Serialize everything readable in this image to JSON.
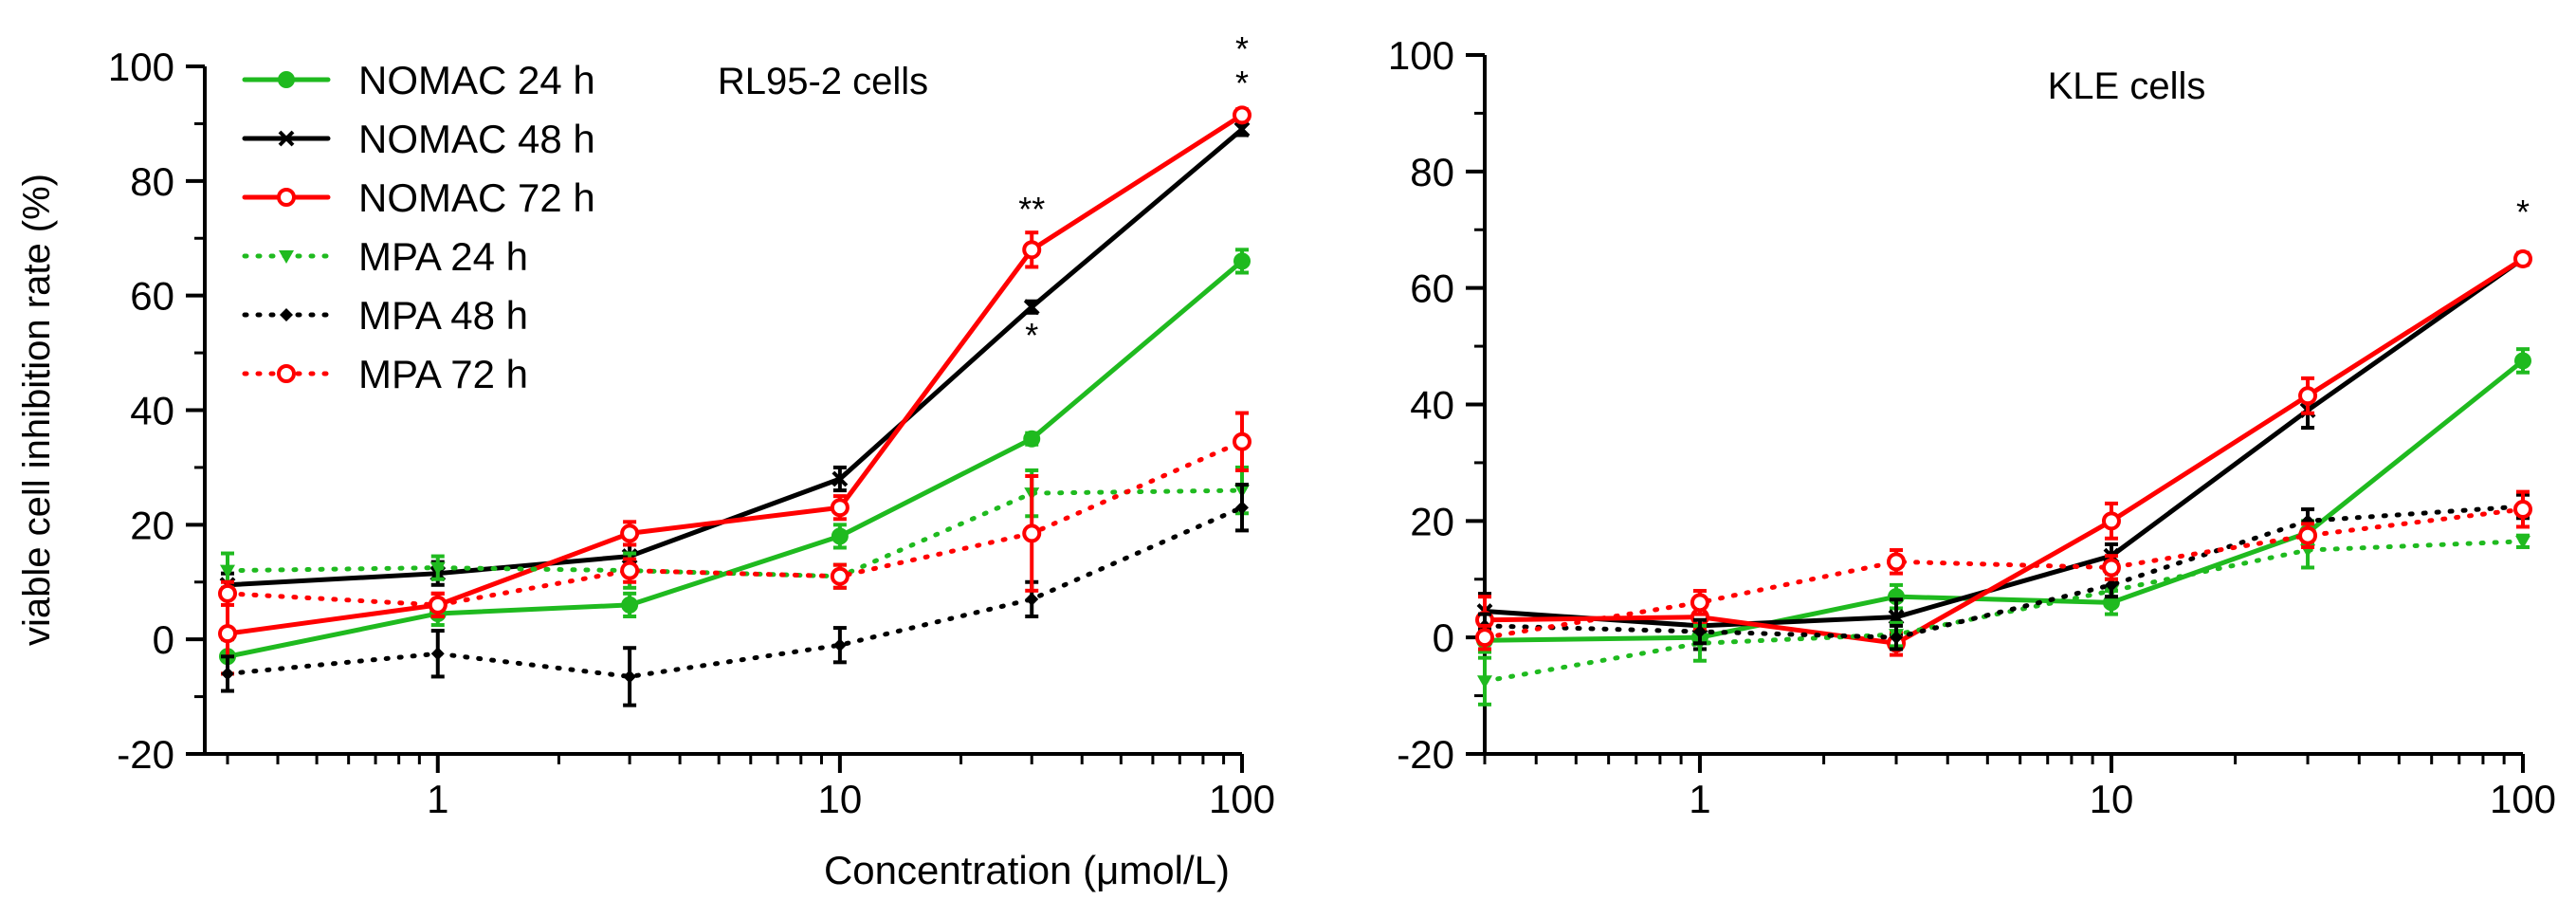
{
  "xlabel": "Concentration (μmol/L)",
  "colors": {
    "green": "#1fba1f",
    "black": "#000000",
    "red": "#ff0000"
  },
  "chart_data": [
    {
      "type": "line",
      "title": "RL95-2 cells",
      "ylabel": "viable cell inhibition rate (%)",
      "xscale": "log",
      "xlim": [
        0.3,
        100
      ],
      "ylim": [
        -20,
        100
      ],
      "yticks": [
        "-20",
        "0",
        "20",
        "40",
        "60",
        "80",
        "100"
      ],
      "xticks": [
        "1",
        "10",
        "100"
      ],
      "x": [
        0.3,
        1,
        3,
        10,
        30,
        100
      ],
      "series": [
        {
          "name": "NOMAC 24 h",
          "color": "green",
          "style": "solid",
          "marker": "circle",
          "values": [
            -3,
            4.5,
            6,
            18,
            35,
            66
          ],
          "errors": [
            3,
            2,
            2,
            2,
            1,
            2
          ]
        },
        {
          "name": "NOMAC 48 h",
          "color": "black",
          "style": "solid",
          "marker": "cross",
          "values": [
            9.5,
            11.5,
            14.5,
            28,
            58,
            89
          ],
          "errors": [
            2,
            2,
            2,
            2,
            1,
            1
          ]
        },
        {
          "name": "NOMAC 72 h",
          "color": "red",
          "style": "solid",
          "marker": "open-circle",
          "values": [
            1,
            6,
            18.5,
            23,
            68,
            91.5
          ],
          "errors": [
            7,
            2,
            2,
            2,
            3,
            1
          ]
        },
        {
          "name": "MPA 24 h",
          "color": "green",
          "style": "dotted",
          "marker": "triangle",
          "values": [
            12,
            12.5,
            12,
            11,
            25.5,
            26
          ],
          "errors": [
            3,
            2,
            3,
            2,
            4,
            4
          ]
        },
        {
          "name": "MPA 48 h",
          "color": "black",
          "style": "dotted",
          "marker": "diamond",
          "values": [
            -6,
            -2.5,
            -6.5,
            -1,
            7,
            23
          ],
          "errors": [
            3,
            4,
            5,
            3,
            3,
            4
          ]
        },
        {
          "name": "MPA 72 h",
          "color": "red",
          "style": "dotted",
          "marker": "open-circle",
          "values": [
            8,
            6,
            12,
            11,
            18.5,
            34.5
          ],
          "errors": [
            2,
            2,
            2,
            2,
            10,
            5
          ]
        }
      ],
      "annotations": [
        {
          "x": 30,
          "y": 73,
          "text": "**"
        },
        {
          "x": 30,
          "y": 51,
          "text": "*"
        },
        {
          "x": 100,
          "y": 101,
          "text": "*"
        },
        {
          "x": 100,
          "y": 95,
          "text": "*"
        }
      ]
    },
    {
      "type": "line",
      "title": "KLE cells",
      "ylabel": "",
      "xscale": "log",
      "xlim": [
        0.3,
        100
      ],
      "ylim": [
        -20,
        100
      ],
      "yticks": [
        "-20",
        "0",
        "20",
        "40",
        "60",
        "80",
        "100"
      ],
      "xticks": [
        "1",
        "10",
        "100"
      ],
      "x": [
        0.3,
        1,
        3,
        10,
        30,
        100
      ],
      "series": [
        {
          "name": "NOMAC 24 h",
          "color": "green",
          "style": "solid",
          "marker": "circle",
          "values": [
            -0.5,
            0,
            7,
            6,
            18,
            47.5
          ],
          "errors": [
            2,
            2,
            2,
            2,
            2,
            2
          ]
        },
        {
          "name": "NOMAC 48 h",
          "color": "black",
          "style": "solid",
          "marker": "cross",
          "values": [
            4.5,
            2,
            3.5,
            14,
            39,
            65
          ],
          "errors": [
            3,
            4,
            3,
            2,
            3,
            1
          ]
        },
        {
          "name": "NOMAC 72 h",
          "color": "red",
          "style": "solid",
          "marker": "open-circle",
          "values": [
            3,
            3.5,
            -1,
            20,
            41.5,
            65
          ],
          "errors": [
            4,
            2,
            2,
            3,
            3,
            1
          ]
        },
        {
          "name": "MPA 24 h",
          "color": "green",
          "style": "dotted",
          "marker": "triangle",
          "values": [
            -7.5,
            -1,
            0.5,
            8,
            15,
            16.5
          ],
          "errors": [
            4,
            3,
            2,
            2,
            3,
            1
          ]
        },
        {
          "name": "MPA 48 h",
          "color": "black",
          "style": "dotted",
          "marker": "diamond",
          "values": [
            2,
            1,
            0,
            9,
            20,
            22.5
          ],
          "errors": [
            2,
            2,
            2,
            2,
            2,
            2
          ]
        },
        {
          "name": "MPA 72 h",
          "color": "red",
          "style": "dotted",
          "marker": "open-circle",
          "values": [
            0,
            6,
            13,
            12,
            17.5,
            22
          ],
          "errors": [
            2,
            2,
            2,
            2,
            2,
            3
          ]
        }
      ],
      "annotations": [
        {
          "x": 100,
          "y": 71,
          "text": "*"
        }
      ]
    }
  ]
}
